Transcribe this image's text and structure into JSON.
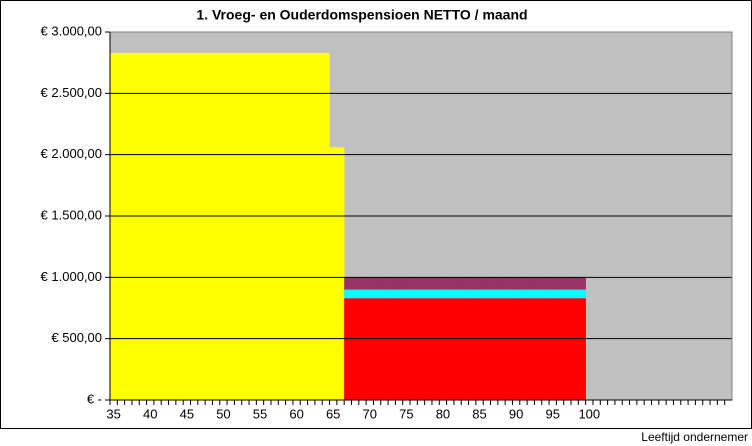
{
  "chart_data": {
    "type": "stacked-bar",
    "title": "1. Vroeg- en Ouderdomspensioen NETTO / maand",
    "x_label": "Leeftijd ondernemer",
    "categories": [
      35,
      null,
      null,
      null,
      null,
      40,
      null,
      null,
      null,
      null,
      45,
      null,
      null,
      null,
      null,
      50,
      null,
      null,
      null,
      null,
      55,
      null,
      null,
      null,
      null,
      60,
      null,
      null,
      null,
      null,
      65,
      null,
      null,
      null,
      null,
      70,
      null,
      null,
      null,
      null,
      75,
      null,
      null,
      null,
      null,
      80,
      null,
      null,
      null,
      null,
      85,
      null,
      null,
      null,
      null,
      90,
      null,
      null,
      null,
      null,
      95,
      null,
      null,
      null,
      null,
      100,
      null,
      null,
      null,
      null,
      null,
      null,
      null,
      null,
      null,
      null,
      null,
      null,
      null,
      null,
      null,
      null,
      null,
      null,
      null
    ],
    "series": [
      {
        "color": "#ffff00",
        "values": [
          2830,
          2830,
          2830,
          2830,
          2830,
          2830,
          2830,
          2830,
          2830,
          2830,
          2830,
          2830,
          2830,
          2830,
          2830,
          2830,
          2830,
          2830,
          2830,
          2830,
          2830,
          2830,
          2830,
          2830,
          2830,
          2830,
          2830,
          2830,
          2830,
          2830,
          2060,
          2060,
          null,
          null,
          null,
          null,
          null,
          null,
          null,
          null,
          null,
          null,
          null,
          null,
          null,
          null,
          null,
          null,
          null,
          null,
          null,
          null,
          null,
          null,
          null,
          null,
          null,
          null,
          null,
          null,
          null,
          null,
          null,
          null,
          null,
          null,
          null,
          null,
          null,
          null,
          null,
          null,
          null,
          null,
          null,
          null,
          null,
          null,
          null,
          null,
          null,
          null,
          null,
          null,
          null
        ]
      },
      {
        "color": "#ff0000",
        "values": [
          null,
          null,
          null,
          null,
          null,
          null,
          null,
          null,
          null,
          null,
          null,
          null,
          null,
          null,
          null,
          null,
          null,
          null,
          null,
          null,
          null,
          null,
          null,
          null,
          null,
          null,
          null,
          null,
          null,
          null,
          null,
          null,
          830,
          830,
          830,
          830,
          830,
          830,
          830,
          830,
          830,
          830,
          830,
          830,
          830,
          830,
          830,
          830,
          830,
          830,
          830,
          830,
          830,
          830,
          830,
          830,
          830,
          830,
          830,
          830,
          830,
          830,
          830,
          830,
          830,
          null,
          null,
          null,
          null,
          null,
          null,
          null,
          null,
          null,
          null,
          null,
          null,
          null,
          null,
          null,
          null,
          null,
          null,
          null,
          null
        ]
      },
      {
        "color": "#00ffff",
        "values": [
          null,
          null,
          null,
          null,
          null,
          null,
          null,
          null,
          null,
          null,
          null,
          null,
          null,
          null,
          null,
          null,
          null,
          null,
          null,
          null,
          null,
          null,
          null,
          null,
          null,
          null,
          null,
          null,
          null,
          null,
          null,
          null,
          70,
          70,
          70,
          70,
          70,
          70,
          70,
          70,
          70,
          70,
          70,
          70,
          70,
          70,
          70,
          70,
          70,
          70,
          70,
          70,
          70,
          70,
          70,
          70,
          70,
          70,
          70,
          70,
          70,
          70,
          70,
          70,
          70,
          null,
          null,
          null,
          null,
          null,
          null,
          null,
          null,
          null,
          null,
          null,
          null,
          null,
          null,
          null,
          null,
          null,
          null,
          null,
          null
        ]
      },
      {
        "color": "#993366",
        "values": [
          null,
          null,
          null,
          null,
          null,
          null,
          null,
          null,
          null,
          null,
          null,
          null,
          null,
          null,
          null,
          null,
          null,
          null,
          null,
          null,
          null,
          null,
          null,
          null,
          null,
          null,
          null,
          null,
          null,
          null,
          null,
          null,
          100,
          100,
          100,
          100,
          100,
          100,
          100,
          100,
          100,
          100,
          100,
          100,
          100,
          100,
          100,
          100,
          100,
          100,
          100,
          100,
          100,
          100,
          100,
          100,
          100,
          100,
          100,
          100,
          100,
          100,
          100,
          100,
          100,
          null,
          null,
          null,
          null,
          null,
          null,
          null,
          null,
          null,
          null,
          null,
          null,
          null,
          null,
          null,
          null,
          null,
          null,
          null,
          null
        ]
      }
    ],
    "ylim": [
      0,
      3000
    ],
    "yticks": [
      {
        "value": 0,
        "label": "€ -"
      },
      {
        "value": 500,
        "label": "€ 500,00"
      },
      {
        "value": 1000,
        "label": "€ 1.000,00"
      },
      {
        "value": 1500,
        "label": "€ 1.500,00"
      },
      {
        "value": 2000,
        "label": "€ 2.000,00"
      },
      {
        "value": 2500,
        "label": "€ 2.500,00"
      },
      {
        "value": 3000,
        "label": "€ 3.000,00"
      }
    ],
    "grid": true,
    "plot_background": "#c0c0c0"
  }
}
